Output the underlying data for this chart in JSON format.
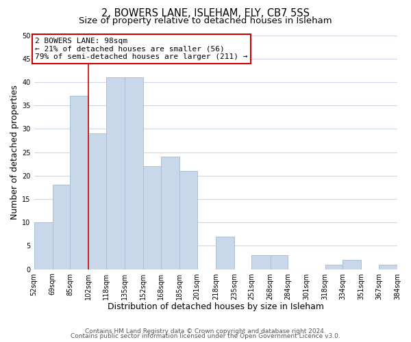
{
  "title_line1": "2, BOWERS LANE, ISLEHAM, ELY, CB7 5SS",
  "title_line2": "Size of property relative to detached houses in Isleham",
  "xlabel": "Distribution of detached houses by size in Isleham",
  "ylabel": "Number of detached properties",
  "bar_edges": [
    52,
    69,
    85,
    102,
    118,
    135,
    152,
    168,
    185,
    201,
    218,
    235,
    251,
    268,
    284,
    301,
    318,
    334,
    351,
    367,
    384
  ],
  "bar_heights": [
    10,
    18,
    37,
    29,
    41,
    41,
    22,
    24,
    21,
    0,
    7,
    0,
    3,
    3,
    0,
    0,
    1,
    2,
    0,
    1
  ],
  "bar_color": "#c8d8ea",
  "bar_edgecolor": "#a8c0d4",
  "ylim": [
    0,
    50
  ],
  "yticks": [
    0,
    5,
    10,
    15,
    20,
    25,
    30,
    35,
    40,
    45,
    50
  ],
  "xtick_labels": [
    "52sqm",
    "69sqm",
    "85sqm",
    "102sqm",
    "118sqm",
    "135sqm",
    "152sqm",
    "168sqm",
    "185sqm",
    "201sqm",
    "218sqm",
    "235sqm",
    "251sqm",
    "268sqm",
    "284sqm",
    "301sqm",
    "318sqm",
    "334sqm",
    "351sqm",
    "367sqm",
    "384sqm"
  ],
  "vline_x": 102,
  "vline_color": "#cc0000",
  "annotation_title": "2 BOWERS LANE: 98sqm",
  "annotation_line1": "← 21% of detached houses are smaller (56)",
  "annotation_line2": "79% of semi-detached houses are larger (211) →",
  "annotation_box_color": "#ffffff",
  "annotation_box_edgecolor": "#cc0000",
  "footer_line1": "Contains HM Land Registry data © Crown copyright and database right 2024.",
  "footer_line2": "Contains public sector information licensed under the Open Government Licence v3.0.",
  "background_color": "#ffffff",
  "grid_color": "#ccd8e4",
  "title_fontsize": 10.5,
  "subtitle_fontsize": 9.5,
  "tick_fontsize": 7,
  "label_fontsize": 9,
  "footer_fontsize": 6.5,
  "annotation_fontsize": 8
}
